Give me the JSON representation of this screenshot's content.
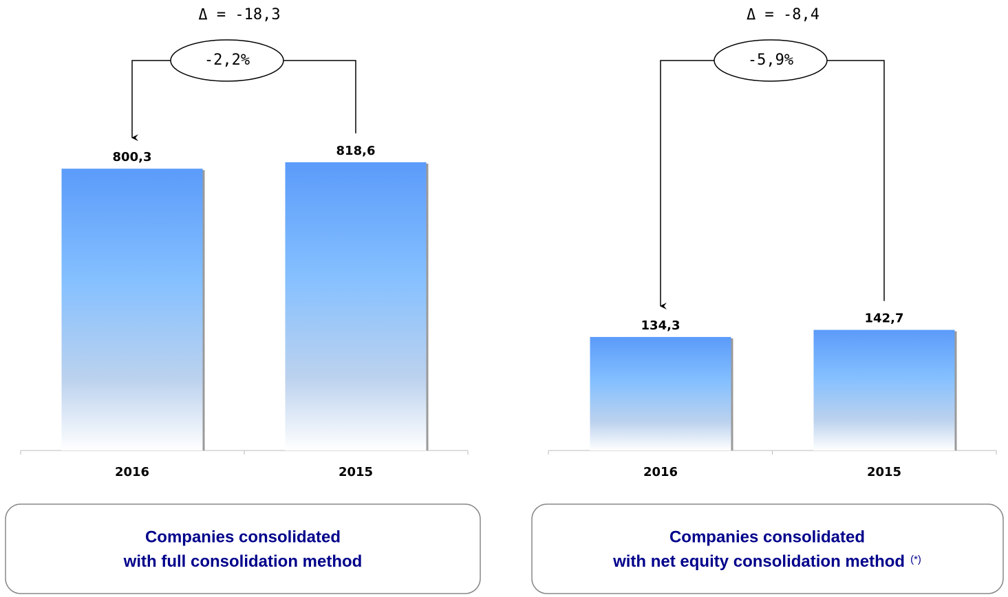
{
  "chart_data": [
    {
      "type": "bar",
      "categories": [
        "2016",
        "2015"
      ],
      "values": [
        800.3,
        818.6
      ],
      "value_labels": [
        "800,3",
        "818,6"
      ],
      "color": "#5b9bfa",
      "annotation_delta": "Δ = -18,3",
      "annotation_change": "-2,2%",
      "caption": [
        "Companies consolidated",
        "with full consolidation method"
      ]
    },
    {
      "type": "bar",
      "categories": [
        "2016",
        "2015"
      ],
      "values": [
        134.3,
        142.7
      ],
      "value_labels": [
        "134,3",
        "142,7"
      ],
      "color": "#5b9bfa",
      "annotation_delta": "Δ = -8,4",
      "annotation_change": "-5,9%",
      "caption": [
        "Companies consolidated",
        "with net equity consolidation method"
      ],
      "footnote_marker": "(*)"
    }
  ]
}
